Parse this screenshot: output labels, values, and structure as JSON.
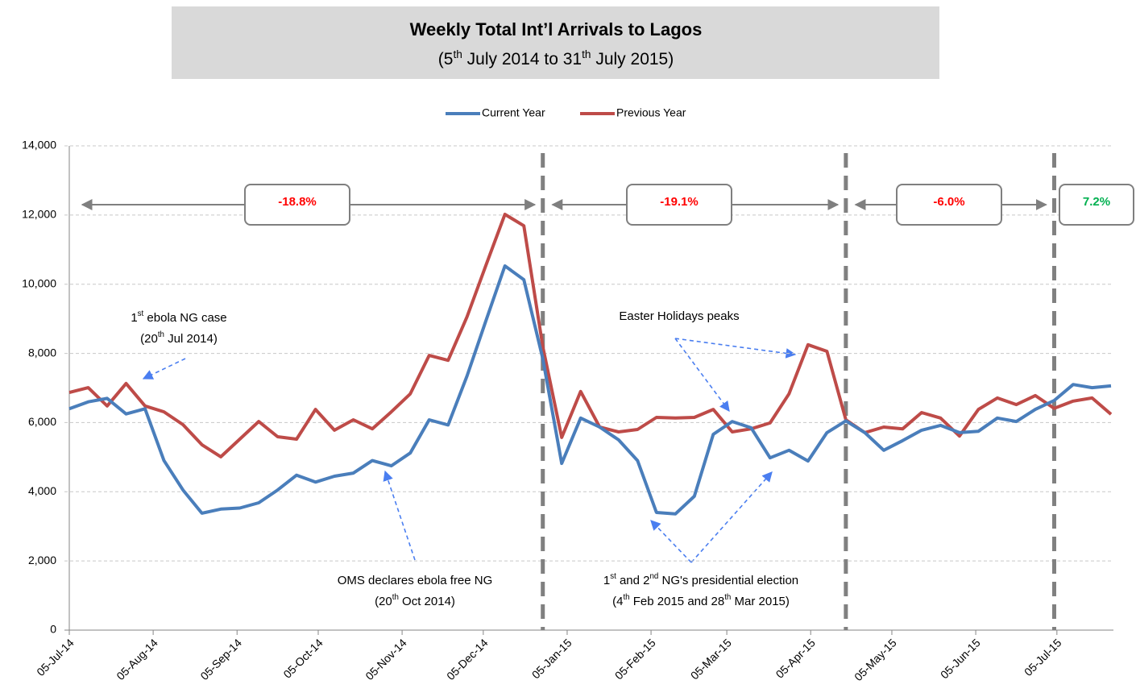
{
  "chart_data": {
    "type": "line",
    "title": "Weekly Total Int’l Arrivals to Lagos",
    "subtitle": [
      "(5",
      "th",
      " July 2014 to 31",
      "th",
      " July 2015)"
    ],
    "x": [
      "2014-07-05",
      "2014-07-12",
      "2014-07-19",
      "2014-07-26",
      "2014-08-02",
      "2014-08-09",
      "2014-08-16",
      "2014-08-23",
      "2014-08-30",
      "2014-09-06",
      "2014-09-13",
      "2014-09-20",
      "2014-09-27",
      "2014-10-04",
      "2014-10-11",
      "2014-10-18",
      "2014-10-25",
      "2014-11-01",
      "2014-11-08",
      "2014-11-15",
      "2014-11-22",
      "2014-11-29",
      "2014-12-06",
      "2014-12-13",
      "2014-12-20",
      "2014-12-27",
      "2015-01-03",
      "2015-01-10",
      "2015-01-17",
      "2015-01-24",
      "2015-01-31",
      "2015-02-07",
      "2015-02-14",
      "2015-02-21",
      "2015-02-28",
      "2015-03-07",
      "2015-03-14",
      "2015-03-21",
      "2015-03-28",
      "2015-04-04",
      "2015-04-11",
      "2015-04-18",
      "2015-04-25",
      "2015-05-02",
      "2015-05-09",
      "2015-05-16",
      "2015-05-23",
      "2015-05-30",
      "2015-06-06",
      "2015-06-13",
      "2015-06-20",
      "2015-06-27",
      "2015-07-04",
      "2015-07-11",
      "2015-07-18",
      "2015-07-25"
    ],
    "series": [
      {
        "name": "Current Year",
        "color": "#4a7ebb",
        "values": [
          6400,
          6600,
          6700,
          6250,
          6400,
          4900,
          4050,
          3380,
          3500,
          3530,
          3680,
          4050,
          4480,
          4280,
          4450,
          4540,
          4900,
          4750,
          5120,
          6080,
          5930,
          7350,
          8950,
          10530,
          10130,
          7850,
          4820,
          6130,
          5870,
          5500,
          4900,
          3400,
          3360,
          3870,
          5660,
          6030,
          5850,
          4980,
          5200,
          4890,
          5710,
          6050,
          5710,
          5200,
          5480,
          5780,
          5920,
          5710,
          5750,
          6130,
          6030,
          6380,
          6640,
          7100,
          7010,
          7060
        ]
      },
      {
        "name": "Previous Year",
        "color": "#be4b48",
        "values": [
          6870,
          7010,
          6480,
          7130,
          6480,
          6310,
          5940,
          5360,
          5010,
          5520,
          6030,
          5590,
          5520,
          6380,
          5780,
          6080,
          5820,
          6310,
          6830,
          7940,
          7800,
          9060,
          10550,
          12020,
          11690,
          8200,
          5570,
          6900,
          5870,
          5730,
          5800,
          6150,
          6130,
          6150,
          6380,
          5730,
          5820,
          5990,
          6830,
          8250,
          8060,
          6080,
          5710,
          5870,
          5820,
          6290,
          6130,
          5610,
          6380,
          6710,
          6520,
          6780,
          6410,
          6620,
          6710,
          6240
        ]
      }
    ],
    "xlim": [
      "2014-07-05",
      "2015-07-25"
    ],
    "xticks": [
      {
        "value": "2014-07-05",
        "label": "05-Jul-14"
      },
      {
        "value": "2014-08-05",
        "label": "05-Aug-14"
      },
      {
        "value": "2014-09-05",
        "label": "05-Sep-14"
      },
      {
        "value": "2014-10-05",
        "label": "05-Oct-14"
      },
      {
        "value": "2014-11-05",
        "label": "05-Nov-14"
      },
      {
        "value": "2014-12-05",
        "label": "05-Dec-14"
      },
      {
        "value": "2015-01-05",
        "label": "05-Jan-15"
      },
      {
        "value": "2015-02-05",
        "label": "05-Feb-15"
      },
      {
        "value": "2015-03-05",
        "label": "05-Mar-15"
      },
      {
        "value": "2015-04-05",
        "label": "05-Apr-15"
      },
      {
        "value": "2015-05-05",
        "label": "05-May-15"
      },
      {
        "value": "2015-06-05",
        "label": "05-Jun-15"
      },
      {
        "value": "2015-07-05",
        "label": "05-Jul-15"
      }
    ],
    "ylim": [
      0,
      14000
    ],
    "yticks": [
      0,
      {
        "value": 2000,
        "label": "2,000"
      },
      {
        "value": 4000,
        "label": "4,000"
      },
      {
        "value": 6000,
        "label": "6,000"
      },
      {
        "value": 8000,
        "label": "8,000"
      },
      {
        "value": 10000,
        "label": "10,000"
      },
      {
        "value": 12000,
        "label": "12,000"
      },
      {
        "value": 14000,
        "label": "14,000"
      }
    ],
    "grid": true,
    "legend": "top",
    "periods": [
      {
        "start": "2014-07-05",
        "end": "2014-12-27",
        "label": "-18.8%",
        "color": "#ff0000"
      },
      {
        "start": "2014-12-27",
        "end": "2015-04-18",
        "label": "-19.1%",
        "color": "#ff0000"
      },
      {
        "start": "2015-04-18",
        "end": "2015-07-04",
        "label": "-6.0%",
        "color": "#ff0000"
      },
      {
        "start": "2015-07-04",
        "end": "2015-07-25",
        "label": "7.2%",
        "color": "#00b050"
      }
    ],
    "annotations": [
      {
        "lines": [
          [
            "1",
            "st",
            " ebola NG case"
          ],
          [
            "(20",
            "th",
            " Jul 2014)"
          ]
        ]
      },
      {
        "lines": [
          [
            "OMS declares ebola free NG"
          ],
          [
            "(20",
            "th",
            " Oct 2014)"
          ]
        ]
      },
      {
        "lines": [
          [
            "1",
            "st",
            " and 2",
            "nd",
            " NG's presidential election"
          ],
          [
            "(4",
            "th",
            " Feb 2015 and 28",
            "th",
            " Mar 2015)"
          ]
        ]
      },
      {
        "lines": [
          [
            "Easter Holidays peaks"
          ]
        ]
      }
    ]
  }
}
